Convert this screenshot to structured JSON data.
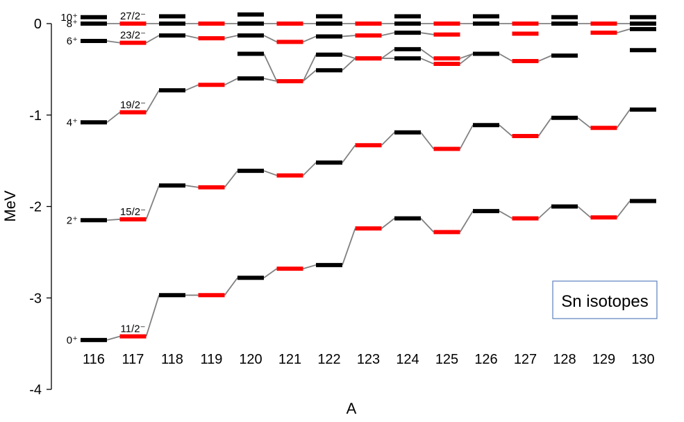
{
  "chart_data": {
    "type": "line",
    "title": "",
    "xlabel": "A",
    "ylabel": "MeV",
    "ylim": [
      -4,
      0
    ],
    "yticks": [
      "0",
      "-1",
      "-2",
      "-3",
      "-4"
    ],
    "categories": [
      "116",
      "117",
      "118",
      "119",
      "120",
      "121",
      "122",
      "123",
      "124",
      "125",
      "126",
      "127",
      "128",
      "129",
      "130"
    ],
    "odd_A": [
      "117",
      "119",
      "121",
      "123",
      "125",
      "127",
      "129"
    ],
    "colors": {
      "even": "#000000",
      "odd": "#ff0000",
      "connector": "#808080"
    },
    "legend": {
      "text": "Sn isotopes",
      "position": "lower-right"
    },
    "series": [
      {
        "label_left": "0⁺",
        "label_odd": "11/2⁻",
        "connected": true,
        "values": [
          -3.46,
          -3.42,
          -2.97,
          -2.97,
          -2.78,
          -2.68,
          -2.64,
          -2.24,
          -2.13,
          -2.28,
          -2.05,
          -2.13,
          -2.0,
          -2.12,
          -1.94
        ]
      },
      {
        "label_left": "2⁺",
        "label_odd": "15/2⁻",
        "connected": true,
        "values": [
          -2.15,
          -2.14,
          -1.77,
          -1.79,
          -1.61,
          -1.66,
          -1.52,
          -1.33,
          -1.19,
          -1.37,
          -1.11,
          -1.23,
          -1.03,
          -1.14,
          -0.94
        ]
      },
      {
        "label_left": "4⁺",
        "label_odd": "19/2⁻",
        "connected": true,
        "values": [
          -1.08,
          -0.97,
          -0.73,
          -0.67,
          -0.6,
          -0.63,
          -0.51,
          -0.38,
          -0.38,
          -0.44,
          -0.33,
          -0.41,
          -0.35,
          null,
          null
        ]
      },
      {
        "label_left": "",
        "label_odd": "",
        "connected": true,
        "values": [
          null,
          null,
          null,
          null,
          -0.33,
          -0.63,
          -0.34,
          -0.38,
          -0.28,
          -0.38,
          -0.33,
          null,
          null,
          null,
          null
        ]
      },
      {
        "label_left": "6⁺",
        "label_odd": "23/2⁻",
        "connected": true,
        "values": [
          -0.19,
          -0.21,
          -0.13,
          -0.16,
          -0.13,
          -0.2,
          -0.14,
          -0.13,
          -0.1,
          -0.12,
          null,
          null,
          null,
          -0.1,
          -0.06
        ]
      },
      {
        "label_left": "8⁺",
        "label_odd": "27/2⁻",
        "connected": true,
        "values": [
          0.0,
          0.0,
          0.0,
          0.0,
          0.0,
          0.0,
          0.0,
          0.0,
          0.0,
          0.0,
          0.0,
          0.0,
          0.0,
          0.0,
          0.0
        ]
      },
      {
        "label_left": "10⁺",
        "label_odd": "",
        "connected": false,
        "values": [
          0.07,
          null,
          0.08,
          null,
          0.1,
          null,
          0.08,
          null,
          0.08,
          null,
          0.08,
          null,
          0.07,
          null,
          0.07
        ]
      },
      {
        "label_left": "",
        "label_odd": "",
        "connected": false,
        "values": [
          null,
          null,
          null,
          null,
          null,
          null,
          null,
          null,
          null,
          null,
          null,
          -0.11,
          null,
          null,
          -0.29
        ]
      }
    ]
  }
}
